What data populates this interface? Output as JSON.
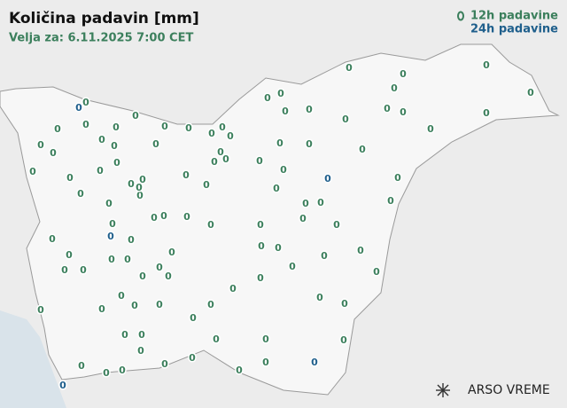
{
  "header": {
    "title": "Količina padavin [mm]",
    "subtitle": "Velja za: 6.11.2025 7:00 CET"
  },
  "legend": {
    "items": [
      {
        "label": "12h padavine",
        "color": "#3b7f5c"
      },
      {
        "label": "24h padavine",
        "color": "#1f5f8c"
      }
    ]
  },
  "stations_12h": [
    0,
    0,
    0,
    0,
    0,
    0,
    0,
    0,
    0,
    0,
    0,
    0,
    0,
    0,
    0,
    0,
    0,
    0,
    0,
    0,
    0,
    0,
    0,
    0,
    0,
    0,
    0,
    0,
    0,
    0,
    0,
    0,
    0,
    0,
    0,
    0,
    0,
    0,
    0,
    0,
    0,
    0,
    0,
    0,
    0,
    0,
    0,
    0,
    0,
    0,
    0,
    0,
    0,
    0,
    0,
    0,
    0,
    0,
    0,
    0,
    0,
    0,
    0,
    0,
    0,
    0,
    0,
    0,
    0,
    0,
    0,
    0,
    0,
    0,
    0,
    0,
    0,
    0,
    0,
    0,
    0,
    0,
    0,
    0,
    0,
    0,
    0,
    0,
    0,
    0,
    0,
    0,
    0,
    0,
    0,
    0,
    0,
    0,
    0,
    0,
    0,
    0,
    0
  ],
  "stations_24h": [
    0,
    0,
    0,
    0,
    0
  ],
  "logo": "ARSO VREME"
}
